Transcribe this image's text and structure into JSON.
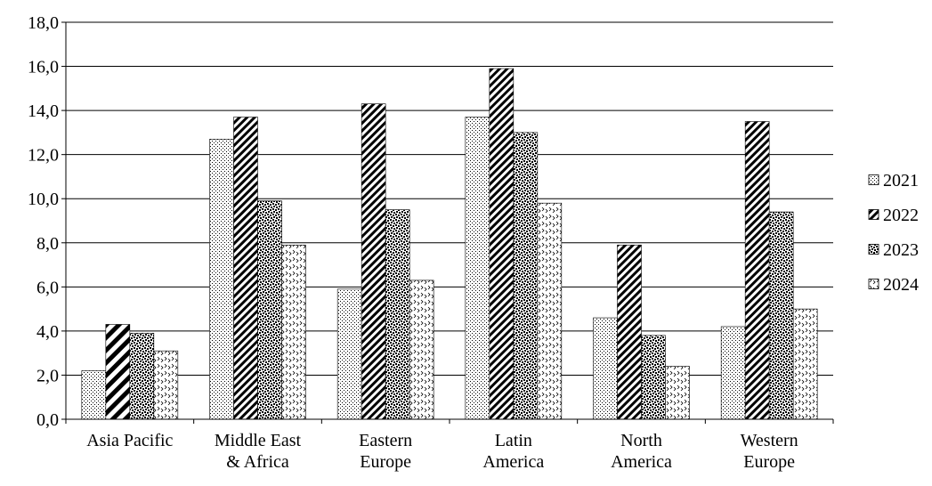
{
  "chart_data": {
    "type": "bar",
    "categories": [
      [
        "Asia Pacific"
      ],
      [
        "Middle East",
        "& Africa"
      ],
      [
        "Eastern",
        "Europe"
      ],
      [
        "Latin",
        "America"
      ],
      [
        "North",
        "America"
      ],
      [
        "Western",
        "Europe"
      ]
    ],
    "series": [
      {
        "name": "2021",
        "values": [
          2.2,
          12.7,
          5.9,
          13.7,
          4.6,
          4.2
        ]
      },
      {
        "name": "2022",
        "values": [
          4.3,
          13.7,
          14.3,
          15.9,
          7.9,
          13.5
        ]
      },
      {
        "name": "2023",
        "values": [
          3.9,
          9.9,
          9.5,
          13.0,
          3.8,
          9.4
        ]
      },
      {
        "name": "2024",
        "values": [
          3.1,
          7.9,
          6.3,
          9.8,
          2.4,
          5.0
        ]
      }
    ],
    "y_ticks": [
      "0,0",
      "2,0",
      "4,0",
      "6,0",
      "8,0",
      "10,0",
      "12,0",
      "14,0",
      "16,0",
      "18,0"
    ],
    "ylim": [
      0,
      18
    ],
    "grid": true,
    "legend_position": "right"
  }
}
